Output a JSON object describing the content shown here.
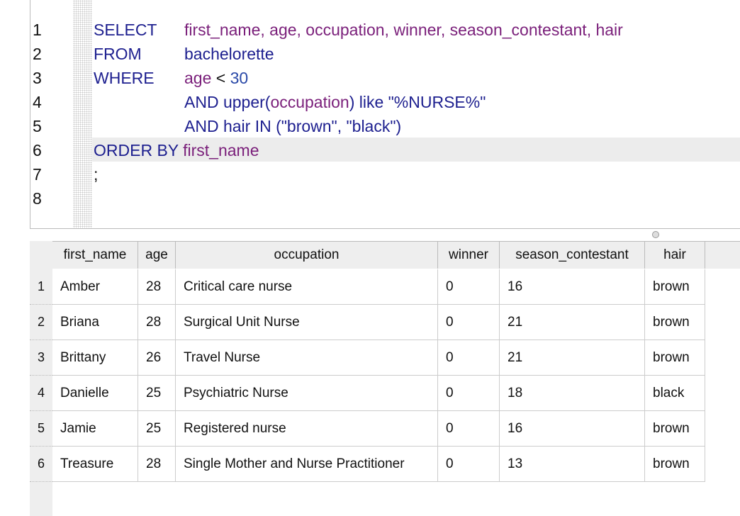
{
  "editor": {
    "line_numbers": [
      1,
      2,
      3,
      4,
      5,
      6,
      7,
      8
    ],
    "lines": [
      [
        "SELECT",
        "first_name, age, occupation, winner, season_contestant, hair"
      ],
      [
        "FROM",
        "bachelorette"
      ],
      [
        "WHERE",
        "age",
        " < ",
        "30"
      ],
      [
        "AND",
        "upper(",
        "occupation",
        ") like ",
        "\"%NURSE%\""
      ],
      [
        "AND hair IN (\"brown\", \"black\")"
      ],
      [
        "ORDER BY",
        "first_name"
      ],
      [
        ";"
      ]
    ]
  },
  "results": {
    "columns": [
      "first_name",
      "age",
      "occupation",
      "winner",
      "season_contestant",
      "hair"
    ],
    "row_numbers": [
      1,
      2,
      3,
      4,
      5,
      6
    ],
    "rows": [
      [
        "Amber",
        28,
        "Critical care nurse",
        0,
        16,
        "brown"
      ],
      [
        "Briana",
        28,
        "Surgical Unit Nurse",
        0,
        21,
        "brown"
      ],
      [
        "Brittany",
        26,
        "Travel Nurse",
        0,
        21,
        "brown"
      ],
      [
        "Danielle",
        25,
        "Psychiatric Nurse",
        0,
        18,
        "black"
      ],
      [
        "Jamie",
        25,
        "Registered nurse",
        0,
        16,
        "brown"
      ],
      [
        "Treasure",
        28,
        "Single Mother and Nurse Practitioner",
        0,
        13,
        "brown"
      ]
    ]
  }
}
